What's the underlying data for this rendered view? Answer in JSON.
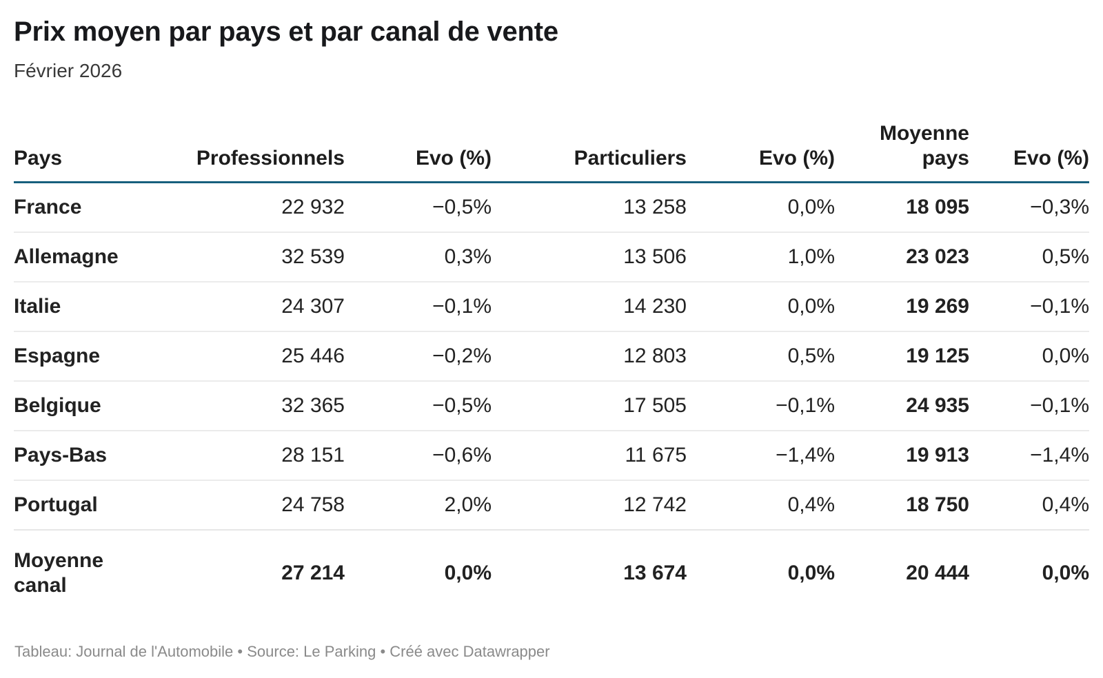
{
  "header": {
    "title": "Prix moyen par pays et par canal de vente",
    "subtitle": "Février 2026"
  },
  "table": {
    "columns": [
      "Pays",
      "Professionnels",
      "Evo (%)",
      "Particuliers",
      "Evo (%)",
      "Moyenne pays",
      "Evo (%)"
    ],
    "rows": [
      {
        "cells": [
          "France",
          "22 932",
          "−0,5%",
          "13 258",
          "0,0%",
          "18 095",
          "−0,3%"
        ]
      },
      {
        "cells": [
          "Allemagne",
          "32 539",
          "0,3%",
          "13 506",
          "1,0%",
          "23 023",
          "0,5%"
        ]
      },
      {
        "cells": [
          "Italie",
          "24 307",
          "−0,1%",
          "14 230",
          "0,0%",
          "19 269",
          "−0,1%"
        ]
      },
      {
        "cells": [
          "Espagne",
          "25 446",
          "−0,2%",
          "12 803",
          "0,5%",
          "19 125",
          "0,0%"
        ]
      },
      {
        "cells": [
          "Belgique",
          "32 365",
          "−0,5%",
          "17 505",
          "−0,1%",
          "24 935",
          "−0,1%"
        ]
      },
      {
        "cells": [
          "Pays-Bas",
          "28 151",
          "−0,6%",
          "11 675",
          "−1,4%",
          "19 913",
          "−1,4%"
        ]
      },
      {
        "cells": [
          "Portugal",
          "24 758",
          "2,0%",
          "12 742",
          "0,4%",
          "18 750",
          "0,4%"
        ]
      }
    ],
    "summary_row": {
      "cells": [
        "Moyenne canal",
        "27 214",
        "0,0%",
        "13 674",
        "0,0%",
        "20 444",
        "0,0%"
      ]
    }
  },
  "footer": {
    "text": "Tableau: Journal de l'Automobile • Source: Le Parking • Créé avec Datawrapper"
  },
  "colors": {
    "header_rule": "#17607d",
    "row_separator": "#ebebeb",
    "footer_text": "#8a8a8a"
  },
  "chart_data": {
    "type": "table",
    "title": "Prix moyen par pays et par canal de vente",
    "subtitle": "Février 2026",
    "columns": [
      "Pays",
      "Professionnels",
      "Evo (%)",
      "Particuliers",
      "Evo (%)",
      "Moyenne pays",
      "Evo (%)"
    ],
    "rows": [
      [
        "France",
        22932,
        -0.5,
        13258,
        0.0,
        18095,
        -0.3
      ],
      [
        "Allemagne",
        32539,
        0.3,
        13506,
        1.0,
        23023,
        0.5
      ],
      [
        "Italie",
        24307,
        -0.1,
        14230,
        0.0,
        19269,
        -0.1
      ],
      [
        "Espagne",
        25446,
        -0.2,
        12803,
        0.5,
        19125,
        0.0
      ],
      [
        "Belgique",
        32365,
        -0.5,
        17505,
        -0.1,
        24935,
        -0.1
      ],
      [
        "Pays-Bas",
        28151,
        -0.6,
        11675,
        -1.4,
        19913,
        -1.4
      ],
      [
        "Portugal",
        24758,
        2.0,
        12742,
        0.4,
        18750,
        0.4
      ]
    ],
    "summary_row": [
      "Moyenne canal",
      27214,
      0.0,
      13674,
      0.0,
      20444,
      0.0
    ],
    "source": "Tableau: Journal de l'Automobile • Source: Le Parking • Créé avec Datawrapper"
  }
}
